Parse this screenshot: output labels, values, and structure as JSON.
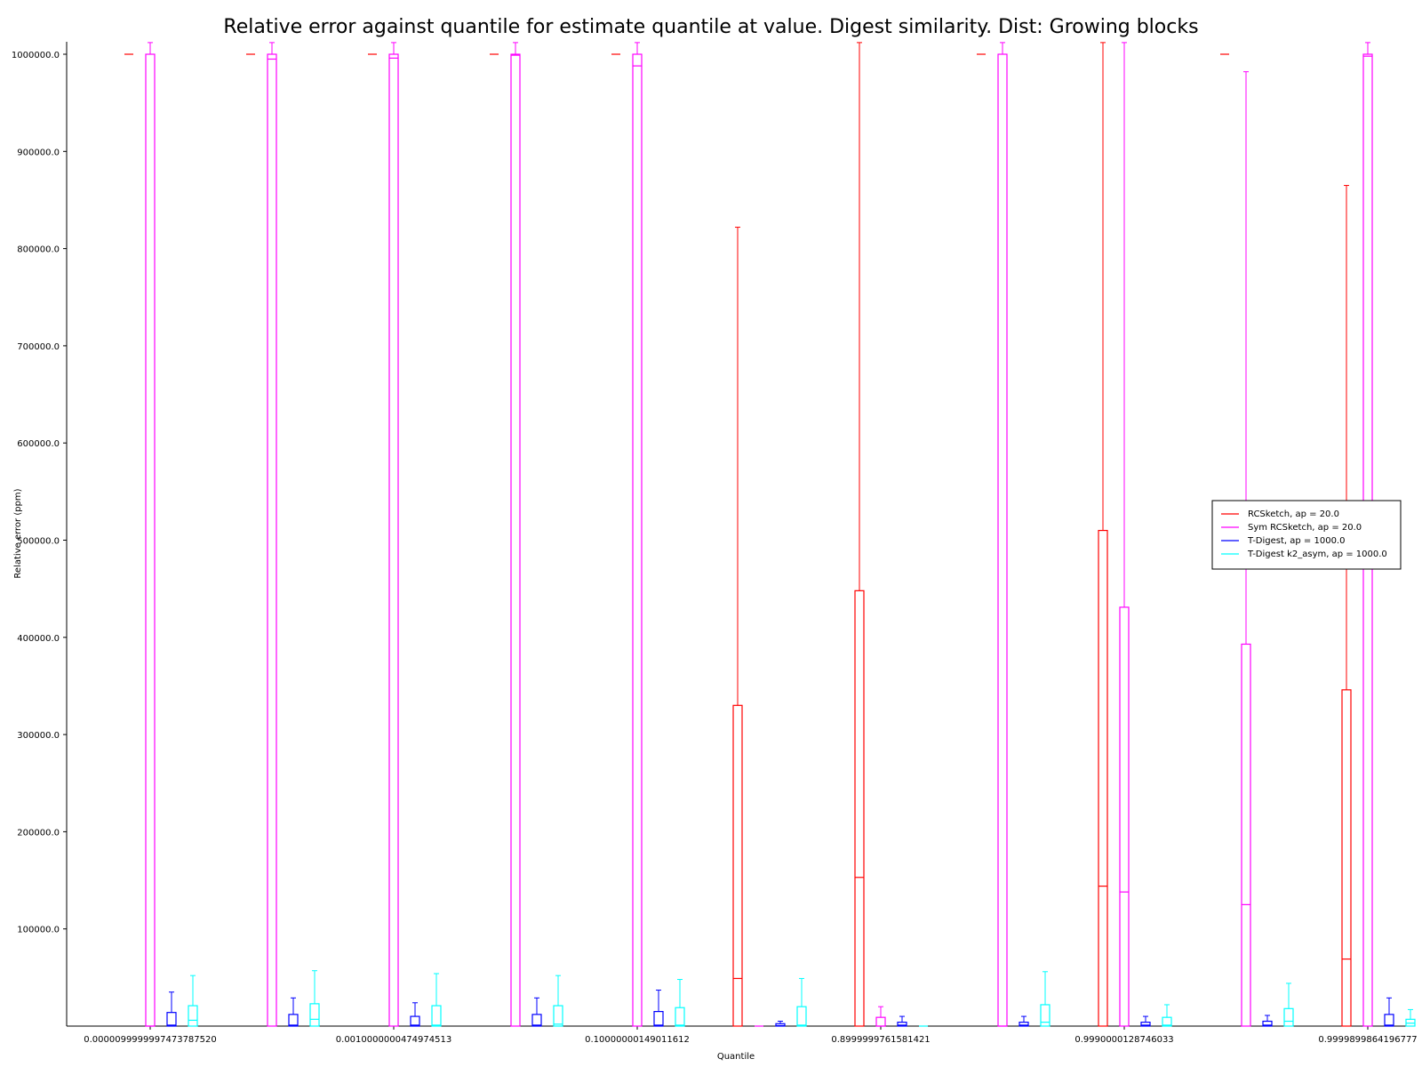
{
  "chart_data": {
    "type": "box",
    "title": "Relative error against quantile for estimate quantile at value. Digest similarity. Dist: Growing blocks",
    "xlabel": "Quantile",
    "ylabel": "Relative error (ppm)",
    "ylim": [
      0,
      1012000
    ],
    "grid": false,
    "legend_position": "center-right",
    "y_ticks": [
      {
        "value": 100000,
        "label": "100000.0"
      },
      {
        "value": 200000,
        "label": "200000.0"
      },
      {
        "value": 300000,
        "label": "300000.0"
      },
      {
        "value": 400000,
        "label": "400000.0"
      },
      {
        "value": 500000,
        "label": "500000.0"
      },
      {
        "value": 600000,
        "label": "600000.0"
      },
      {
        "value": 700000,
        "label": "700000.0"
      },
      {
        "value": 800000,
        "label": "800000.0"
      },
      {
        "value": 900000,
        "label": "900000.0"
      },
      {
        "value": 1000000,
        "label": "1000000.0"
      }
    ],
    "x_tick_labels": [
      {
        "group": 0,
        "label": "0.0000099999997473787520"
      },
      {
        "group": 2,
        "label": "0.0010000000474974513"
      },
      {
        "group": 4,
        "label": "0.10000000149011612"
      },
      {
        "group": 6,
        "label": "0.8999999761581421"
      },
      {
        "group": 8,
        "label": "0.9990000128746033"
      },
      {
        "group": 10,
        "label": "0.9999899864196777"
      }
    ],
    "series": [
      {
        "name": "RCSketch, ap = 20.0",
        "color": "#ff0000",
        "boxes": [
          {
            "group": 0,
            "min": 1000000,
            "q1": 1000000,
            "median": 1000000,
            "q3": 1000000,
            "max": 1000000
          },
          {
            "group": 1,
            "min": 1000000,
            "q1": 1000000,
            "median": 1000000,
            "q3": 1000000,
            "max": 1000000
          },
          {
            "group": 2,
            "min": 1000000,
            "q1": 1000000,
            "median": 1000000,
            "q3": 1000000,
            "max": 1000000
          },
          {
            "group": 3,
            "min": 1000000,
            "q1": 1000000,
            "median": 1000000,
            "q3": 1000000,
            "max": 1000000
          },
          {
            "group": 4,
            "min": 1000000,
            "q1": 1000000,
            "median": 1000000,
            "q3": 1000000,
            "max": 1000000
          },
          {
            "group": 5,
            "min": 0,
            "q1": 0,
            "median": 49000,
            "q3": 330000,
            "max": 822000
          },
          {
            "group": 6,
            "min": 0,
            "q1": 0,
            "median": 153000,
            "q3": 448000,
            "max": 1012000
          },
          {
            "group": 7,
            "min": 1000000,
            "q1": 1000000,
            "median": 1000000,
            "q3": 1000000,
            "max": 1000000
          },
          {
            "group": 8,
            "min": 0,
            "q1": 0,
            "median": 144000,
            "q3": 510000,
            "max": 1012000
          },
          {
            "group": 9,
            "min": 1000000,
            "q1": 1000000,
            "median": 1000000,
            "q3": 1000000,
            "max": 1000000
          },
          {
            "group": 10,
            "min": 0,
            "q1": 0,
            "median": 69000,
            "q3": 346000,
            "max": 865000
          }
        ]
      },
      {
        "name": "Sym RCSketch, ap = 20.0",
        "color": "#ff00ff",
        "boxes": [
          {
            "group": 0,
            "min": 0,
            "q1": 0,
            "median": 0,
            "q3": 1000000,
            "max": 1012000
          },
          {
            "group": 1,
            "min": 0,
            "q1": 0,
            "median": 995000,
            "q3": 1000000,
            "max": 1012000
          },
          {
            "group": 2,
            "min": 0,
            "q1": 0,
            "median": 996000,
            "q3": 1000000,
            "max": 1012000
          },
          {
            "group": 3,
            "min": 0,
            "q1": 0,
            "median": 999000,
            "q3": 1000000,
            "max": 1012000
          },
          {
            "group": 4,
            "min": 0,
            "q1": 0,
            "median": 988000,
            "q3": 1000000,
            "max": 1012000
          },
          {
            "group": 5,
            "min": 0,
            "q1": 0,
            "median": 0,
            "q3": 0,
            "max": 0
          },
          {
            "group": 6,
            "min": 0,
            "q1": 0,
            "median": 0,
            "q3": 9000,
            "max": 20000
          },
          {
            "group": 7,
            "min": 0,
            "q1": 0,
            "median": 0,
            "q3": 1000000,
            "max": 1012000
          },
          {
            "group": 8,
            "min": 0,
            "q1": 0,
            "median": 138000,
            "q3": 431000,
            "max": 1012000
          },
          {
            "group": 9,
            "min": 0,
            "q1": 0,
            "median": 125000,
            "q3": 393000,
            "max": 982000
          },
          {
            "group": 10,
            "min": 0,
            "q1": 0,
            "median": 998000,
            "q3": 1000000,
            "max": 1012000
          }
        ]
      },
      {
        "name": "T-Digest, ap = 1000.0",
        "color": "#0000ff",
        "boxes": [
          {
            "group": 0,
            "min": 0,
            "q1": 0,
            "median": 1000,
            "q3": 14000,
            "max": 35000
          },
          {
            "group": 1,
            "min": 0,
            "q1": 0,
            "median": 1000,
            "q3": 12000,
            "max": 29000
          },
          {
            "group": 2,
            "min": 0,
            "q1": 0,
            "median": 1000,
            "q3": 10000,
            "max": 24000
          },
          {
            "group": 3,
            "min": 0,
            "q1": 0,
            "median": 1000,
            "q3": 12000,
            "max": 29000
          },
          {
            "group": 4,
            "min": 0,
            "q1": 0,
            "median": 1000,
            "q3": 15000,
            "max": 37000
          },
          {
            "group": 5,
            "min": 0,
            "q1": 0,
            "median": 500,
            "q3": 2500,
            "max": 5000
          },
          {
            "group": 6,
            "min": 0,
            "q1": 0,
            "median": 1000,
            "q3": 4000,
            "max": 10000
          },
          {
            "group": 7,
            "min": 0,
            "q1": 0,
            "median": 1000,
            "q3": 4000,
            "max": 10000
          },
          {
            "group": 8,
            "min": 0,
            "q1": 0,
            "median": 1000,
            "q3": 4000,
            "max": 10000
          },
          {
            "group": 9,
            "min": 0,
            "q1": 0,
            "median": 1000,
            "q3": 5000,
            "max": 11000
          },
          {
            "group": 10,
            "min": 0,
            "q1": 0,
            "median": 1000,
            "q3": 12000,
            "max": 29000
          }
        ]
      },
      {
        "name": "T-Digest k2_asym, ap = 1000.0",
        "color": "#00ffff",
        "boxes": [
          {
            "group": 0,
            "min": 0,
            "q1": 0,
            "median": 6000,
            "q3": 21000,
            "max": 52000
          },
          {
            "group": 1,
            "min": 0,
            "q1": 0,
            "median": 7000,
            "q3": 23000,
            "max": 57000
          },
          {
            "group": 2,
            "min": 0,
            "q1": 0,
            "median": 1000,
            "q3": 21000,
            "max": 54000
          },
          {
            "group": 3,
            "min": 0,
            "q1": 0,
            "median": 2000,
            "q3": 21000,
            "max": 52000
          },
          {
            "group": 4,
            "min": 0,
            "q1": 0,
            "median": 1000,
            "q3": 19000,
            "max": 48000
          },
          {
            "group": 5,
            "min": 0,
            "q1": 0,
            "median": 1000,
            "q3": 20000,
            "max": 49000
          },
          {
            "group": 6,
            "min": 0,
            "q1": 0,
            "median": 0,
            "q3": 0,
            "max": 0
          },
          {
            "group": 7,
            "min": 0,
            "q1": 0,
            "median": 4000,
            "q3": 22000,
            "max": 56000
          },
          {
            "group": 8,
            "min": 0,
            "q1": 0,
            "median": 1000,
            "q3": 9000,
            "max": 22000
          },
          {
            "group": 9,
            "min": 0,
            "q1": 0,
            "median": 5000,
            "q3": 18000,
            "max": 44000
          },
          {
            "group": 10,
            "min": 0,
            "q1": 0,
            "median": 3000,
            "q3": 7000,
            "max": 17000
          }
        ]
      }
    ]
  }
}
